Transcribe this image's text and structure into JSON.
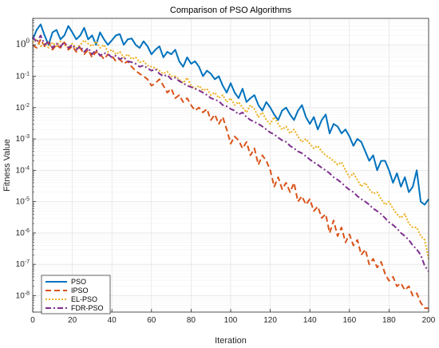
{
  "chart_data": {
    "type": "line",
    "title": "Comparison of PSO Algorithms",
    "xlabel": "Iteration",
    "ylabel": "Fitness Value",
    "xlim": [
      0,
      200
    ],
    "ylim": [
      3e-09,
      7
    ],
    "yscale": "log",
    "grid": true,
    "legend_position": "bottom-left",
    "x_ticks": [
      0,
      20,
      40,
      60,
      80,
      100,
      120,
      140,
      160,
      180,
      200
    ],
    "y_ticks": [
      {
        "value": 1,
        "label": "10^0"
      },
      {
        "value": 0.1,
        "label": "10^-1"
      },
      {
        "value": 0.01,
        "label": "10^-2"
      },
      {
        "value": 0.001,
        "label": "10^-3"
      },
      {
        "value": 0.0001,
        "label": "10^-4"
      },
      {
        "value": 1e-05,
        "label": "10^-5"
      },
      {
        "value": 1e-06,
        "label": "10^-6"
      },
      {
        "value": 1e-07,
        "label": "10^-7"
      },
      {
        "value": 1e-08,
        "label": "10^-8"
      }
    ],
    "series": [
      {
        "name": "PSO",
        "color": "#0072BD",
        "dash": "solid",
        "x": [
          0,
          2,
          4,
          6,
          8,
          10,
          12,
          14,
          16,
          18,
          20,
          22,
          24,
          26,
          28,
          30,
          32,
          34,
          36,
          38,
          40,
          42,
          44,
          46,
          48,
          50,
          52,
          54,
          56,
          58,
          60,
          62,
          64,
          66,
          68,
          70,
          72,
          74,
          76,
          78,
          80,
          82,
          84,
          86,
          88,
          90,
          92,
          94,
          96,
          98,
          100,
          102,
          104,
          106,
          108,
          110,
          112,
          114,
          116,
          118,
          120,
          122,
          124,
          126,
          128,
          130,
          132,
          134,
          136,
          138,
          140,
          142,
          144,
          146,
          148,
          150,
          152,
          154,
          156,
          158,
          160,
          162,
          164,
          166,
          168,
          170,
          172,
          174,
          176,
          178,
          180,
          182,
          184,
          186,
          188,
          190,
          192,
          194,
          196,
          198,
          200
        ],
        "y": [
          1.5,
          3.0,
          4.5,
          2.0,
          1.0,
          2.5,
          3.0,
          1.5,
          2.0,
          4.0,
          2.5,
          1.5,
          2.0,
          3.5,
          1.5,
          2.0,
          1.0,
          2.5,
          1.5,
          1.0,
          1.4,
          2.0,
          2.2,
          1.0,
          1.5,
          1.6,
          1.0,
          0.8,
          1.3,
          0.9,
          0.5,
          0.7,
          0.9,
          0.4,
          0.6,
          0.5,
          0.7,
          0.3,
          0.2,
          0.4,
          0.25,
          0.3,
          0.2,
          0.1,
          0.15,
          0.12,
          0.08,
          0.1,
          0.05,
          0.03,
          0.06,
          0.03,
          0.02,
          0.04,
          0.015,
          0.02,
          0.025,
          0.012,
          0.008,
          0.015,
          0.01,
          0.006,
          0.004,
          0.008,
          0.01,
          0.006,
          0.004,
          0.008,
          0.012,
          0.005,
          0.003,
          0.005,
          0.002,
          0.004,
          0.006,
          0.0015,
          0.003,
          0.0025,
          0.0015,
          0.002,
          0.0012,
          0.0006,
          0.001,
          0.0008,
          0.0004,
          0.0002,
          0.0003,
          0.0001,
          0.0002,
          0.0002,
          0.0001,
          4e-05,
          8e-05,
          3e-05,
          6e-05,
          2e-05,
          3e-05,
          0.0001,
          1e-05,
          8e-06,
          1.2e-05
        ]
      },
      {
        "name": "IPSO",
        "color": "#D95319",
        "dash": "dashed",
        "x": [
          0,
          2,
          4,
          6,
          8,
          10,
          12,
          14,
          16,
          18,
          20,
          22,
          24,
          26,
          28,
          30,
          32,
          34,
          36,
          38,
          40,
          42,
          44,
          46,
          48,
          50,
          52,
          54,
          56,
          58,
          60,
          62,
          64,
          66,
          68,
          70,
          72,
          74,
          76,
          78,
          80,
          82,
          84,
          86,
          88,
          90,
          92,
          94,
          96,
          98,
          100,
          102,
          104,
          106,
          108,
          110,
          112,
          114,
          116,
          118,
          120,
          122,
          124,
          126,
          128,
          130,
          132,
          134,
          136,
          138,
          140,
          142,
          144,
          146,
          148,
          150,
          152,
          154,
          156,
          158,
          160,
          162,
          164,
          166,
          168,
          170,
          172,
          174,
          176,
          178,
          180,
          182,
          184,
          186,
          188,
          190,
          192,
          194,
          196,
          198,
          200
        ],
        "y": [
          1.0,
          0.8,
          1.5,
          0.9,
          1.2,
          0.7,
          1.0,
          0.8,
          1.2,
          0.7,
          0.9,
          0.6,
          0.8,
          0.5,
          0.7,
          0.4,
          0.6,
          0.5,
          0.35,
          0.5,
          0.45,
          0.3,
          0.35,
          0.25,
          0.3,
          0.2,
          0.15,
          0.12,
          0.1,
          0.08,
          0.05,
          0.06,
          0.08,
          0.05,
          0.03,
          0.04,
          0.02,
          0.025,
          0.015,
          0.02,
          0.012,
          0.008,
          0.01,
          0.007,
          0.009,
          0.004,
          0.006,
          0.003,
          0.005,
          0.002,
          0.0007,
          0.0012,
          0.0009,
          0.0005,
          0.0008,
          0.0003,
          0.0005,
          0.00015,
          0.0003,
          0.0002,
          0.0001,
          3e-05,
          6e-05,
          2.5e-05,
          4e-05,
          2e-05,
          4e-05,
          1e-05,
          1.5e-05,
          8e-06,
          1.2e-05,
          5e-06,
          7e-06,
          3e-06,
          4e-06,
          1e-06,
          2.5e-06,
          8e-07,
          1.5e-06,
          5e-07,
          9e-07,
          4e-07,
          6e-07,
          2e-07,
          3e-07,
          1e-07,
          1.5e-07,
          8e-08,
          1.2e-07,
          5e-08,
          3e-08,
          4e-08,
          2e-08,
          2.5e-08,
          1.5e-08,
          2e-08,
          1e-08,
          1.2e-08,
          6e-09,
          4e-09,
          4e-09
        ]
      },
      {
        "name": "EL-PSO",
        "color": "#EDB120",
        "dash": "dotted",
        "x": [
          0,
          2,
          4,
          6,
          8,
          10,
          12,
          14,
          16,
          18,
          20,
          22,
          24,
          26,
          28,
          30,
          32,
          34,
          36,
          38,
          40,
          42,
          44,
          46,
          48,
          50,
          52,
          54,
          56,
          58,
          60,
          62,
          64,
          66,
          68,
          70,
          72,
          74,
          76,
          78,
          80,
          82,
          84,
          86,
          88,
          90,
          92,
          94,
          96,
          98,
          100,
          102,
          104,
          106,
          108,
          110,
          112,
          114,
          116,
          118,
          120,
          122,
          124,
          126,
          128,
          130,
          132,
          134,
          136,
          138,
          140,
          142,
          144,
          146,
          148,
          150,
          152,
          154,
          156,
          158,
          160,
          162,
          164,
          166,
          168,
          170,
          172,
          174,
          176,
          178,
          180,
          182,
          184,
          186,
          188,
          190,
          192,
          194,
          196,
          198,
          200
        ],
        "y": [
          1.2,
          1.5,
          0.9,
          1.1,
          0.8,
          1.2,
          0.9,
          1.3,
          1.0,
          0.8,
          1.1,
          0.8,
          1.0,
          1.4,
          1.1,
          0.9,
          1.3,
          0.8,
          1.0,
          0.6,
          0.7,
          0.5,
          0.6,
          0.4,
          0.5,
          0.35,
          0.4,
          0.28,
          0.3,
          0.22,
          0.2,
          0.18,
          0.15,
          0.12,
          0.14,
          0.1,
          0.1,
          0.08,
          0.06,
          0.09,
          0.05,
          0.04,
          0.05,
          0.035,
          0.04,
          0.025,
          0.03,
          0.02,
          0.025,
          0.015,
          0.02,
          0.012,
          0.015,
          0.01,
          0.007,
          0.012,
          0.009,
          0.005,
          0.007,
          0.004,
          0.003,
          0.005,
          0.003,
          0.002,
          0.0025,
          0.0015,
          0.002,
          0.0012,
          0.0008,
          0.001,
          0.0007,
          0.0005,
          0.0006,
          0.0004,
          0.0003,
          0.00025,
          0.0002,
          0.00015,
          0.00018,
          0.0001,
          6e-05,
          8e-05,
          5e-05,
          3e-05,
          4e-05,
          2.5e-05,
          1.8e-05,
          2e-05,
          1.2e-05,
          8e-06,
          1e-05,
          6e-06,
          4e-06,
          3e-06,
          4e-06,
          2e-06,
          1.5e-06,
          1.5e-06,
          8e-07,
          6e-07,
          1.5e-07
        ]
      },
      {
        "name": "FDR-PSO",
        "color": "#7E2F8E",
        "dash": "dashdot",
        "x": [
          0,
          2,
          4,
          6,
          8,
          10,
          12,
          14,
          16,
          18,
          20,
          22,
          24,
          26,
          28,
          30,
          32,
          34,
          36,
          38,
          40,
          42,
          44,
          46,
          48,
          50,
          52,
          54,
          56,
          58,
          60,
          62,
          64,
          66,
          68,
          70,
          72,
          74,
          76,
          78,
          80,
          82,
          84,
          86,
          88,
          90,
          92,
          94,
          96,
          98,
          100,
          102,
          104,
          106,
          108,
          110,
          112,
          114,
          116,
          118,
          120,
          122,
          124,
          126,
          128,
          130,
          132,
          134,
          136,
          138,
          140,
          142,
          144,
          146,
          148,
          150,
          152,
          154,
          156,
          158,
          160,
          162,
          164,
          166,
          168,
          170,
          172,
          174,
          176,
          178,
          180,
          182,
          184,
          186,
          188,
          190,
          192,
          194,
          196,
          198,
          200
        ],
        "y": [
          1.8,
          1.2,
          2.0,
          1.0,
          1.3,
          0.8,
          1.1,
          0.9,
          1.2,
          0.8,
          1.0,
          0.7,
          0.9,
          0.6,
          0.8,
          0.5,
          0.7,
          0.45,
          0.55,
          0.5,
          0.4,
          0.45,
          0.35,
          0.4,
          0.3,
          0.28,
          0.25,
          0.2,
          0.22,
          0.18,
          0.15,
          0.17,
          0.12,
          0.1,
          0.11,
          0.08,
          0.09,
          0.07,
          0.06,
          0.05,
          0.045,
          0.04,
          0.035,
          0.03,
          0.025,
          0.02,
          0.018,
          0.016,
          0.012,
          0.011,
          0.009,
          0.008,
          0.006,
          0.007,
          0.005,
          0.004,
          0.0035,
          0.003,
          0.0025,
          0.002,
          0.0016,
          0.0014,
          0.0011,
          0.0009,
          0.0008,
          0.0006,
          0.0005,
          0.0004,
          0.00035,
          0.00028,
          0.00022,
          0.00018,
          0.00015,
          0.00012,
          0.0001,
          8e-05,
          6e-05,
          5e-05,
          4e-05,
          3e-05,
          2.4e-05,
          2e-05,
          1.5e-05,
          1.2e-05,
          1e-05,
          8e-06,
          6e-06,
          5e-06,
          4e-06,
          3e-06,
          2.2e-06,
          1.8e-06,
          1.4e-06,
          1e-06,
          8e-07,
          6e-07,
          4e-07,
          3e-07,
          2e-07,
          9e-08,
          6e-08
        ]
      }
    ]
  }
}
